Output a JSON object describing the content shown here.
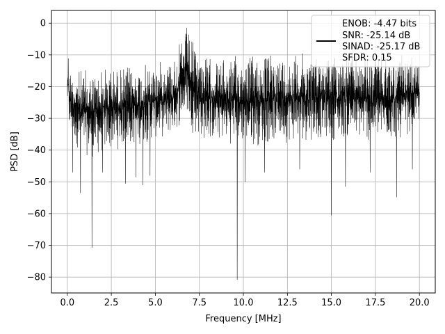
{
  "chart_data": {
    "type": "line",
    "xlabel": "Frequency [MHz]",
    "ylabel": "PSD [dB]",
    "xlim": [
      -0.9,
      20.9
    ],
    "ylim": [
      -85,
      4
    ],
    "xticks": [
      0.0,
      2.5,
      5.0,
      7.5,
      10.0,
      12.5,
      15.0,
      17.5,
      20.0
    ],
    "xtick_labels": [
      "0.0",
      "2.5",
      "5.0",
      "7.5",
      "10.0",
      "12.5",
      "15.0",
      "17.5",
      "20.0"
    ],
    "yticks": [
      0,
      -10,
      -20,
      -30,
      -40,
      -50,
      -60,
      -70,
      -80
    ],
    "ytick_labels": [
      "0",
      "−10",
      "−20",
      "−30",
      "−40",
      "−50",
      "−60",
      "−70",
      "−80"
    ],
    "grid": true,
    "legend_position": "top-right",
    "legend_lines": [
      "ENOB: -4.47 bits",
      "SNR: -25.14 dB",
      "SINAD: -25.17 dB",
      "SFDR: 0.15"
    ],
    "series": [
      {
        "color": "#000000",
        "envelope": {
          "x": [
            0.0,
            0.05,
            0.1,
            0.3,
            0.6,
            1.0,
            1.5,
            2.0,
            2.5,
            3.0,
            4.0,
            5.0,
            6.0,
            6.5,
            6.8,
            7.0,
            7.5,
            8.0,
            9.0,
            10.0,
            11.0,
            12.0,
            13.0,
            14.0,
            15.0,
            16.0,
            17.0,
            18.0,
            19.0,
            20.0
          ],
          "upper": [
            -14,
            -6,
            -12,
            -15,
            -14,
            -14,
            -14,
            -13,
            -13,
            -13,
            -13,
            -12,
            -10,
            -5,
            0,
            -4,
            -8,
            -10,
            -11,
            -9,
            -9,
            -9,
            -9,
            -9,
            -9,
            -9,
            -10,
            -10,
            -10,
            -11
          ],
          "lower": [
            -26,
            -30,
            -35,
            -37,
            -40,
            -42,
            -43,
            -42,
            -41,
            -40,
            -39,
            -37,
            -36,
            -32,
            -30,
            -34,
            -37,
            -38,
            -38,
            -39,
            -39,
            -38,
            -38,
            -37,
            -37,
            -37,
            -38,
            -38,
            -37,
            -32
          ]
        },
        "dips": [
          {
            "x": 0.3,
            "y": -47
          },
          {
            "x": 0.75,
            "y": -53.5
          },
          {
            "x": 1.4,
            "y": -70.7
          },
          {
            "x": 2.0,
            "y": -47
          },
          {
            "x": 3.3,
            "y": -50.5
          },
          {
            "x": 3.9,
            "y": -48.5
          },
          {
            "x": 4.3,
            "y": -51
          },
          {
            "x": 4.7,
            "y": -48
          },
          {
            "x": 9.65,
            "y": -80.8
          },
          {
            "x": 10.1,
            "y": -50
          },
          {
            "x": 11.2,
            "y": -47
          },
          {
            "x": 13.2,
            "y": -46
          },
          {
            "x": 15.0,
            "y": -60.5
          },
          {
            "x": 15.8,
            "y": -51.5
          },
          {
            "x": 17.2,
            "y": -47
          },
          {
            "x": 18.7,
            "y": -54.8
          },
          {
            "x": 19.6,
            "y": -46
          }
        ]
      }
    ]
  }
}
